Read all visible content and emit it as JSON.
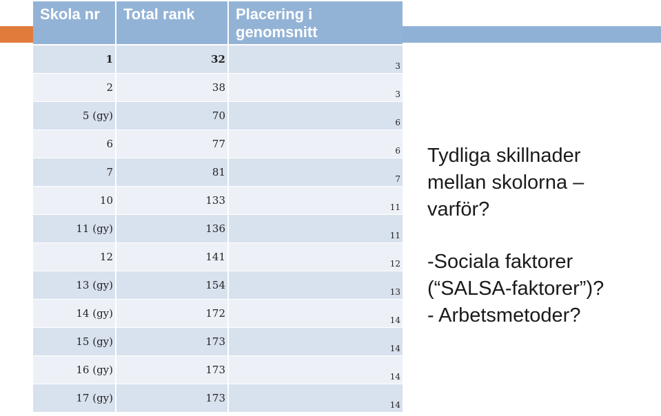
{
  "table": {
    "headers": [
      "Skola nr",
      "Total rank",
      "Placering i genomsnitt"
    ],
    "rows": [
      {
        "skola": "1",
        "total": "32",
        "placering": "3"
      },
      {
        "skola": "2",
        "total": "38",
        "placering": "3"
      },
      {
        "skola": "5 (gy)",
        "total": "70",
        "placering": "6"
      },
      {
        "skola": "6",
        "total": "77",
        "placering": "6"
      },
      {
        "skola": "7",
        "total": "81",
        "placering": "7"
      },
      {
        "skola": "10",
        "total": "133",
        "placering": "11"
      },
      {
        "skola": "11 (gy)",
        "total": "136",
        "placering": "11"
      },
      {
        "skola": "12",
        "total": "141",
        "placering": "12"
      },
      {
        "skola": "13 (gy)",
        "total": "154",
        "placering": "13"
      },
      {
        "skola": "14 (gy)",
        "total": "172",
        "placering": "14"
      },
      {
        "skola": "15  (gy)",
        "total": "173",
        "placering": "14"
      },
      {
        "skola": "16 (gy)",
        "total": "173",
        "placering": "14"
      },
      {
        "skola": "17 (gy)",
        "total": "173",
        "placering": "14"
      }
    ]
  },
  "notes": {
    "question_lines": [
      "Tydliga skillnader",
      "mellan skolorna –",
      "varför?"
    ],
    "answer_lines": [
      "-Sociala faktorer",
      "(“SALSA-faktorer”)?",
      "- Arbetsmetoder?"
    ]
  },
  "colors": {
    "header_bg": "#93b3d6",
    "row_odd": "#d8e1ee",
    "row_even": "#edf1f7",
    "accent_orange": "#e07b3c",
    "accent_blue": "#8fb1d6"
  }
}
